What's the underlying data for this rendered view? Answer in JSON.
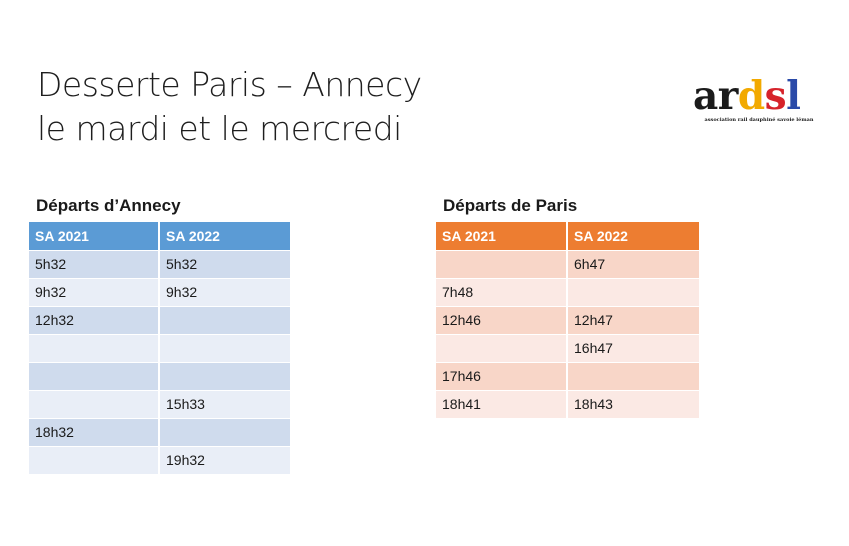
{
  "slide": {
    "title_line1": "Desserte Paris – Annecy",
    "title_line2": "le mardi et le mercredi"
  },
  "logo": {
    "letters": [
      "a",
      "r",
      "d",
      "s",
      "l"
    ],
    "colors": [
      "#1b1b1b",
      "#1b1b1b",
      "#f2a900",
      "#d6232b",
      "#2a4aa8"
    ],
    "tagline": "association rail dauphiné savoie léman"
  },
  "annecy": {
    "title": "Départs d’Annecy",
    "headers": [
      "SA 2021",
      "SA 2022"
    ],
    "rows": [
      [
        "5h32",
        "5h32"
      ],
      [
        "9h32",
        "9h32"
      ],
      [
        "12h32",
        ""
      ],
      [
        "",
        ""
      ],
      [
        "",
        ""
      ],
      [
        "",
        "15h33"
      ],
      [
        "18h32",
        ""
      ],
      [
        "",
        "19h32"
      ]
    ],
    "accent": "#5b9bd5"
  },
  "paris": {
    "title": "Départs de Paris",
    "headers": [
      "SA 2021",
      "SA 2022"
    ],
    "rows": [
      [
        "",
        "6h47"
      ],
      [
        "7h48",
        ""
      ],
      [
        "12h46",
        "12h47"
      ],
      [
        "",
        "16h47"
      ],
      [
        "17h46",
        ""
      ],
      [
        "18h41",
        "18h43"
      ]
    ],
    "accent": "#ed7d31"
  }
}
